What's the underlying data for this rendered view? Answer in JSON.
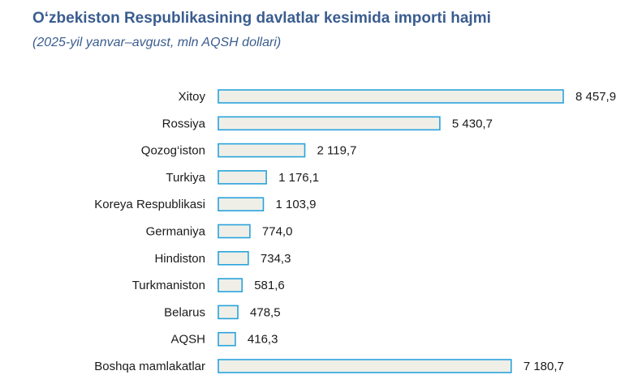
{
  "header": {
    "title": "O‘zbekiston Respublikasining davlatlar kesimida importi hajmi",
    "subtitle": "(2025-yil yanvar–avgust, mln AQSH dollari)"
  },
  "colors": {
    "title": "#3a5d8f",
    "bar_fill": "#efefe8",
    "bar_stroke": "#29a3dc"
  },
  "chart_data": {
    "type": "bar",
    "orientation": "horizontal",
    "title": "O‘zbekiston Respublikasining davlatlar kesimida importi hajmi",
    "subtitle": "(2025-yil yanvar–avgust, mln AQSH dollari)",
    "categories": [
      "Xitoy",
      "Rossiya",
      "Qozog‘iston",
      "Turkiya",
      "Koreya Respublikasi",
      "Germaniya",
      "Hindiston",
      "Turkmaniston",
      "Belarus",
      "AQSH",
      "Boshqa mamlakatlar"
    ],
    "values": [
      8457.9,
      5430.7,
      2119.7,
      1176.1,
      1103.9,
      774.0,
      734.3,
      581.6,
      478.5,
      416.3,
      7180.7
    ],
    "value_labels": [
      "8 457,9",
      "5 430,7",
      "2 119,7",
      "1 176,1",
      "1 103,9",
      "774,0",
      "734,3",
      "581,6",
      "478,5",
      "416,3",
      "7 180,7"
    ],
    "xlim": [
      0,
      8457.9
    ],
    "grid": false,
    "legend": "none",
    "data_labels": "end"
  }
}
